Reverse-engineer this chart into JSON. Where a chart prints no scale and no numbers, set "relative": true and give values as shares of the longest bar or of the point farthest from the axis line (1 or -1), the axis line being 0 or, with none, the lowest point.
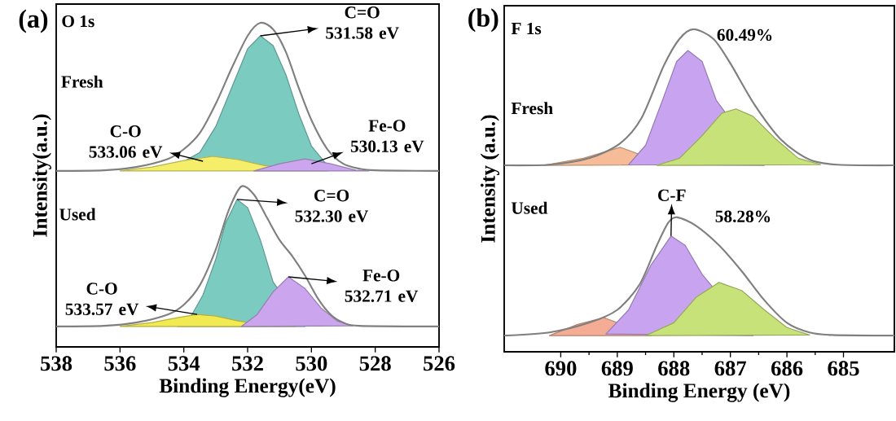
{
  "chart_data": [
    {
      "type": "line",
      "title": "(a)",
      "xlabel": "Binding Energy(eV)",
      "ylabel": "Intensity(a.u.)",
      "relative": true,
      "xlim": [
        538,
        526
      ],
      "xticks": [
        538,
        536,
        534,
        532,
        530,
        528,
        526
      ],
      "series": [
        {
          "type": "area",
          "color": "#7ccbc1",
          "x": [
            534.5,
            533.5,
            533,
            532.5,
            532,
            531.6,
            531.2,
            530.8,
            530.4,
            530,
            529.5,
            529
          ],
          "values": [
            0.545,
            0.6,
            0.68,
            0.8,
            0.92,
            0.96,
            0.93,
            0.84,
            0.72,
            0.62,
            0.56,
            0.545
          ]
        },
        {
          "type": "area",
          "color": "#f4ee6a",
          "x": [
            536,
            535,
            534,
            533.1,
            532.3,
            531.5,
            530.5,
            529.5
          ],
          "values": [
            0.543,
            0.555,
            0.575,
            0.588,
            0.578,
            0.56,
            0.548,
            0.543
          ]
        },
        {
          "type": "area",
          "color": "#cba6ee",
          "x": [
            531.8,
            531,
            530.2,
            529.4,
            528.6,
            528.2
          ],
          "values": [
            0.543,
            0.565,
            0.58,
            0.565,
            0.545,
            0.543
          ]
        },
        {
          "color": "#7f7f7f",
          "x": [
            538,
            536.5,
            535.5,
            534.5,
            534,
            533.5,
            533,
            532.5,
            532,
            531.6,
            531.2,
            530.8,
            530.4,
            530,
            529.5,
            529,
            528.5,
            528,
            526
          ],
          "values": [
            0.543,
            0.545,
            0.555,
            0.58,
            0.61,
            0.66,
            0.75,
            0.86,
            0.96,
            1.0,
            0.98,
            0.91,
            0.8,
            0.7,
            0.61,
            0.565,
            0.55,
            0.545,
            0.543
          ]
        },
        {
          "type": "area",
          "color": "#7ccbc1",
          "x": [
            534.2,
            533.8,
            533.4,
            533,
            532.7,
            532.33,
            532,
            531.6,
            531.2,
            530.2
          ],
          "values": [
            0.063,
            0.09,
            0.16,
            0.27,
            0.38,
            0.455,
            0.43,
            0.33,
            0.2,
            0.063
          ]
        },
        {
          "type": "area",
          "color": "#f2ea52",
          "x": [
            536,
            535,
            534.2,
            533.58,
            533,
            532.3,
            531.5,
            530.5
          ],
          "values": [
            0.063,
            0.075,
            0.09,
            0.1,
            0.095,
            0.08,
            0.068,
            0.063
          ]
        },
        {
          "type": "area",
          "color": "#cba6ee",
          "x": [
            532.2,
            531.7,
            531.2,
            530.72,
            530.2,
            529.7,
            529.2,
            528.7
          ],
          "values": [
            0.063,
            0.1,
            0.17,
            0.216,
            0.18,
            0.12,
            0.08,
            0.065
          ]
        },
        {
          "color": "#7f7f7f",
          "x": [
            538,
            536.5,
            535.5,
            534.5,
            534,
            533.5,
            533,
            532.6,
            532.2,
            531.8,
            531.4,
            531,
            530.6,
            530.2,
            529.8,
            529.4,
            529,
            528.5,
            526
          ],
          "values": [
            0.063,
            0.065,
            0.075,
            0.1,
            0.13,
            0.19,
            0.3,
            0.42,
            0.495,
            0.47,
            0.4,
            0.33,
            0.28,
            0.22,
            0.15,
            0.1,
            0.075,
            0.065,
            0.063
          ]
        }
      ],
      "annotations": [
        "O 1s",
        "Fresh",
        "Used",
        {
          "text": "C=O 531.58 eV",
          "x": 531.6,
          "y": 0.96
        },
        {
          "text": "C-O 533.06 eV",
          "x": 533.4,
          "y": 0.573
        },
        {
          "text": "Fe-O 530.13 eV",
          "x": 530.0,
          "y": 0.565
        },
        {
          "text": "C=O 532.30 eV",
          "x": 532.33,
          "y": 0.455
        },
        {
          "text": "Fe-O 532.71 eV",
          "x": 530.72,
          "y": 0.216
        },
        {
          "text": "C-O 533.57 eV",
          "x": 533.58,
          "y": 0.1
        }
      ]
    },
    {
      "type": "line",
      "title": "(b)",
      "xlabel": "Binding Energy (eV)",
      "ylabel": "Intensity (a.u.)",
      "relative": true,
      "xlim": [
        691,
        684.1
      ],
      "xticks": [
        690,
        689,
        688,
        687,
        686,
        685
      ],
      "series": [
        {
          "type": "area",
          "color": "#f6bc98",
          "x": [
            690.3,
            689.6,
            688.95,
            688.1
          ],
          "values": [
            0.578,
            0.6,
            0.634,
            0.58
          ]
        },
        {
          "type": "area",
          "color": "#c8a4f0",
          "x": [
            688.8,
            688.5,
            688.2,
            687.95,
            687.75,
            687.5,
            687.25,
            686.4
          ],
          "values": [
            0.58,
            0.64,
            0.78,
            0.9,
            0.934,
            0.9,
            0.78,
            0.578
          ]
        },
        {
          "type": "area",
          "color": "#c8e27a",
          "x": [
            688.3,
            687.9,
            687.5,
            687.15,
            686.9,
            686.6,
            686.2,
            685.8,
            685.4
          ],
          "values": [
            0.578,
            0.6,
            0.67,
            0.74,
            0.753,
            0.73,
            0.66,
            0.6,
            0.58
          ]
        },
        {
          "color": "#7f7f7f",
          "x": [
            691,
            690.2,
            689.5,
            688.95,
            688.57,
            688.18,
            687.9,
            687.65,
            687.3,
            687.0,
            686.58,
            686.1,
            685.6,
            685.1,
            684.1
          ],
          "values": [
            0.578,
            0.58,
            0.6,
            0.646,
            0.725,
            0.886,
            0.97,
            1.0,
            0.97,
            0.894,
            0.768,
            0.657,
            0.596,
            0.58,
            0.578
          ]
        },
        {
          "type": "area",
          "color": "#f4ac94",
          "x": [
            690.2,
            689.7,
            689.24,
            688.4
          ],
          "values": [
            0.05,
            0.085,
            0.106,
            0.05
          ]
        },
        {
          "type": "area",
          "color": "#c8a4f0",
          "x": [
            689.2,
            688.8,
            688.4,
            688.05,
            687.8,
            687.5,
            686.6
          ],
          "values": [
            0.055,
            0.13,
            0.27,
            0.359,
            0.33,
            0.24,
            0.05
          ]
        },
        {
          "type": "area",
          "color": "#c8e27a",
          "x": [
            688.5,
            688,
            687.6,
            687.2,
            686.8,
            686.4,
            686,
            685.6
          ],
          "values": [
            0.05,
            0.09,
            0.17,
            0.215,
            0.19,
            0.13,
            0.075,
            0.052
          ]
        },
        {
          "color": "#7f7f7f",
          "x": [
            691,
            690.2,
            689.5,
            689,
            688.6,
            688.3,
            688.1,
            687.94,
            687.6,
            687.2,
            686.8,
            686.4,
            686,
            685.6,
            685.2,
            684.1
          ],
          "values": [
            0.05,
            0.06,
            0.09,
            0.13,
            0.21,
            0.33,
            0.4,
            0.417,
            0.39,
            0.33,
            0.25,
            0.16,
            0.09,
            0.06,
            0.052,
            0.05
          ]
        }
      ],
      "annotations": [
        "F 1s",
        "Fresh",
        "Used",
        {
          "text": "C-F",
          "x": 688.05,
          "y": 0.359
        },
        {
          "text": "60.49%",
          "x": 687.65,
          "y": 1.0
        },
        {
          "text": "58.28%",
          "x": 687.94,
          "y": 0.417
        }
      ]
    }
  ]
}
